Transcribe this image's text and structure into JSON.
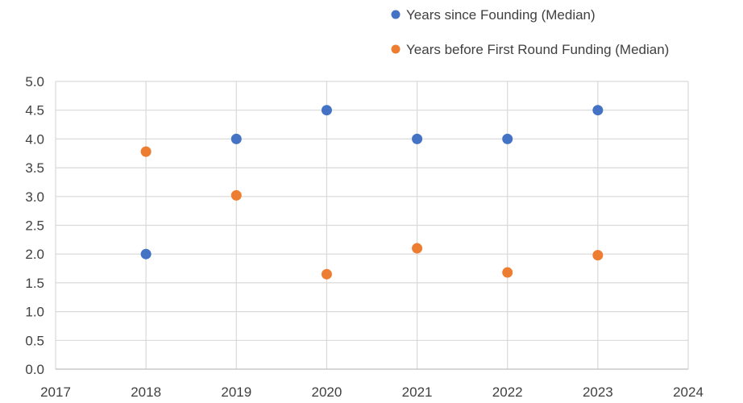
{
  "chart_data": {
    "type": "scatter",
    "title": "",
    "xlabel": "",
    "ylabel": "",
    "xlim": [
      2017,
      2024
    ],
    "ylim": [
      0,
      5
    ],
    "x_ticks": [
      "2017",
      "2018",
      "2019",
      "2020",
      "2021",
      "2022",
      "2023",
      "2024"
    ],
    "y_ticks": [
      "0.0",
      "0.5",
      "1.0",
      "1.5",
      "2.0",
      "2.5",
      "3.0",
      "3.5",
      "4.0",
      "4.5",
      "5.0"
    ],
    "grid": true,
    "legend_position": "top-right",
    "series": [
      {
        "name": "Years since Founding (Median)",
        "color": "#4472c4",
        "points": [
          {
            "x": 2018,
            "y": 2.0
          },
          {
            "x": 2019,
            "y": 4.0
          },
          {
            "x": 2020,
            "y": 4.5
          },
          {
            "x": 2021,
            "y": 4.0
          },
          {
            "x": 2022,
            "y": 4.0
          },
          {
            "x": 2023,
            "y": 4.5
          }
        ]
      },
      {
        "name": "Years before First Round Funding (Median)",
        "color": "#ed7d31",
        "points": [
          {
            "x": 2018,
            "y": 3.78
          },
          {
            "x": 2019,
            "y": 3.02
          },
          {
            "x": 2020,
            "y": 1.65
          },
          {
            "x": 2021,
            "y": 2.1
          },
          {
            "x": 2022,
            "y": 1.68
          },
          {
            "x": 2023,
            "y": 1.98
          }
        ]
      }
    ]
  }
}
